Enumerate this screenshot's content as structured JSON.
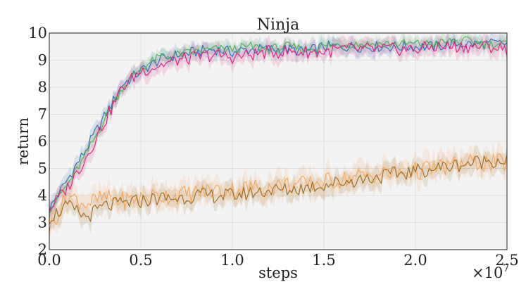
{
  "chart_data": {
    "type": "line",
    "title": "Ninja",
    "xlabel": "steps",
    "ylabel": "return",
    "x_offset_label": "×10",
    "x_offset_exponent": "7",
    "xlim": [
      0,
      2.5
    ],
    "ylim": [
      2,
      10
    ],
    "xticks": [
      "0.0",
      "0.5",
      "1.0",
      "1.5",
      "2.0",
      "2.5"
    ],
    "xtick_values": [
      0,
      0.5,
      1.0,
      1.5,
      2.0,
      2.5
    ],
    "yticks": [
      "2",
      "3",
      "4",
      "5",
      "6",
      "7",
      "8",
      "9",
      "10"
    ],
    "ytick_values": [
      2,
      3,
      4,
      5,
      6,
      7,
      8,
      9,
      10
    ],
    "grid": true,
    "x": [
      0.0,
      0.1,
      0.2,
      0.3,
      0.4,
      0.5,
      0.6,
      0.7,
      0.8,
      0.9,
      1.0,
      1.1,
      1.2,
      1.3,
      1.4,
      1.5,
      1.6,
      1.7,
      1.8,
      1.9,
      2.0,
      2.1,
      2.2,
      2.3,
      2.4,
      2.5
    ],
    "series": [
      {
        "color": "#2c6fb5",
        "band": 0.3,
        "values": [
          3.5,
          4.6,
          5.7,
          6.9,
          8.1,
          8.6,
          9.0,
          9.2,
          9.3,
          9.4,
          9.3,
          9.4,
          9.4,
          9.4,
          9.3,
          9.5,
          9.5,
          9.5,
          9.5,
          9.5,
          9.5,
          9.5,
          9.6,
          9.6,
          9.6,
          9.6
        ]
      },
      {
        "color": "#4caf50",
        "band": 0.25,
        "values": [
          3.5,
          4.4,
          5.5,
          6.8,
          8.0,
          8.7,
          9.1,
          9.2,
          9.3,
          9.4,
          9.4,
          9.5,
          9.4,
          9.5,
          9.4,
          9.5,
          9.6,
          9.6,
          9.6,
          9.6,
          9.6,
          9.6,
          9.7,
          9.7,
          9.6,
          9.6
        ]
      },
      {
        "color": "#e6197d",
        "band": 0.35,
        "values": [
          3.5,
          4.3,
          5.4,
          6.7,
          8.0,
          8.6,
          8.8,
          9.0,
          9.1,
          9.2,
          9.1,
          9.2,
          9.3,
          9.3,
          9.3,
          9.3,
          9.4,
          9.4,
          9.4,
          9.4,
          9.4,
          9.5,
          9.5,
          9.5,
          9.5,
          9.4
        ]
      },
      {
        "color": "#f5a55a",
        "band": 0.5,
        "values": [
          2.8,
          4.0,
          3.7,
          3.9,
          3.8,
          3.9,
          4.0,
          4.0,
          4.1,
          4.2,
          4.2,
          4.3,
          4.3,
          4.4,
          4.4,
          4.5,
          4.6,
          4.7,
          4.8,
          4.8,
          4.9,
          5.0,
          5.1,
          5.2,
          5.2,
          5.2
        ]
      },
      {
        "color": "#9b6b1e",
        "band": 0.4,
        "values": [
          3.2,
          3.6,
          3.2,
          3.6,
          3.7,
          3.8,
          3.9,
          3.9,
          4.0,
          4.0,
          4.0,
          4.1,
          4.2,
          4.2,
          4.3,
          4.4,
          4.5,
          4.6,
          4.7,
          4.8,
          4.9,
          5.0,
          5.1,
          5.2,
          5.3,
          5.3
        ]
      }
    ]
  }
}
